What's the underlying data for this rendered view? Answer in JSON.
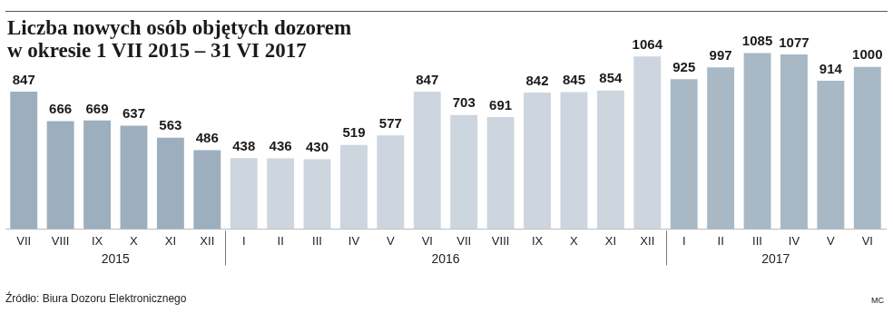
{
  "chart_data": {
    "type": "bar",
    "title": "Liczba nowych osób objętych dozorem\nw okresie 1 VII 2015 – 31 VI 2017",
    "source": "Źródło: Biura Dozoru Elektronicznego",
    "credit": "MC",
    "categories": [
      "VII",
      "VIII",
      "IX",
      "X",
      "XI",
      "XII",
      "I",
      "II",
      "III",
      "IV",
      "V",
      "VI",
      "VII",
      "VIII",
      "IX",
      "X",
      "XI",
      "XII",
      "I",
      "II",
      "III",
      "IV",
      "V",
      "VI"
    ],
    "groups": [
      {
        "label": "2015",
        "count": 6
      },
      {
        "label": "2016",
        "count": 12
      },
      {
        "label": "2017",
        "count": 6
      }
    ],
    "values": [
      847,
      666,
      669,
      637,
      563,
      486,
      438,
      436,
      430,
      519,
      577,
      847,
      703,
      691,
      842,
      845,
      854,
      1064,
      925,
      997,
      1085,
      1077,
      914,
      1000
    ],
    "colors": [
      "#9dafbe",
      "#9dafbe",
      "#9dafbe",
      "#9dafbe",
      "#9dafbe",
      "#9dafbe",
      "#cdd6de",
      "#cdd6de",
      "#cdd6de",
      "#cdd6de",
      "#cdd6de",
      "#cdd6de",
      "#cdd6de",
      "#cdd6de",
      "#cdd6de",
      "#cdd6de",
      "#cdd6de",
      "#cdd6de",
      "#a8b8c5",
      "#a8b8c5",
      "#a8b8c5",
      "#a8b8c5",
      "#a8b8c5",
      "#a8b8c5"
    ],
    "ylim": [
      0,
      1200
    ],
    "grid": false,
    "tick_labels": "x",
    "data_labels": true
  }
}
